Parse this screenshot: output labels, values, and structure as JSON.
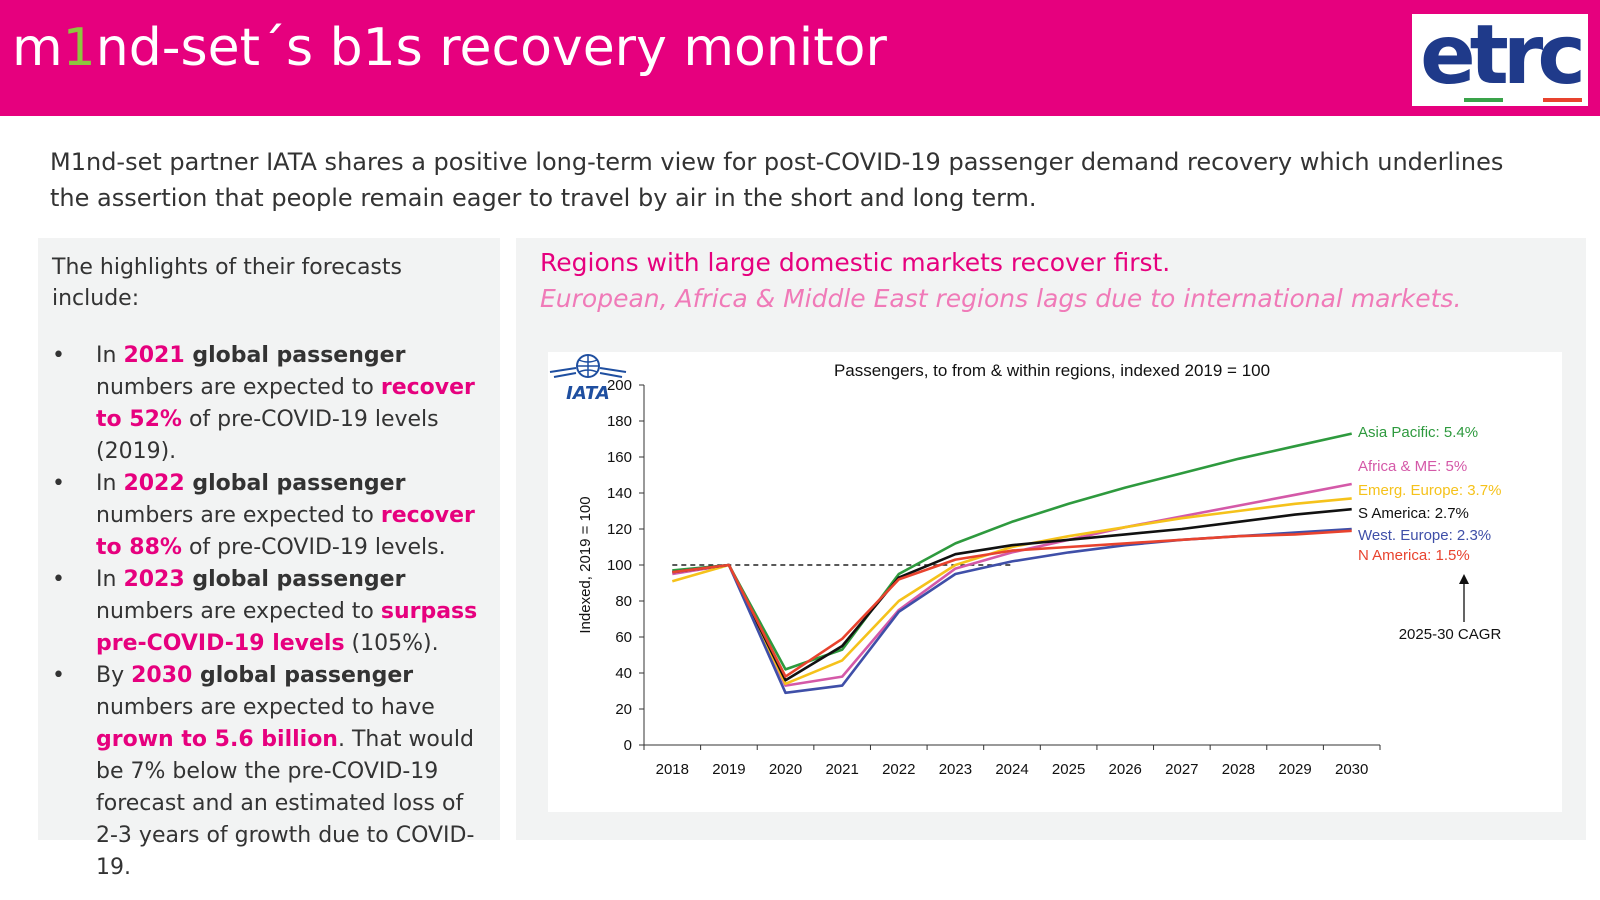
{
  "header": {
    "title_parts": [
      "m",
      "1",
      "nd-set´s b1s recovery monitor"
    ],
    "logo_text": "etrc"
  },
  "intro": "M1nd-set partner IATA shares a positive long-term view for post-COVID-19 passenger demand recovery which underlines the assertion that people remain eager to travel by air in the short and long term.",
  "left": {
    "intro": "The highlights of their forecasts include:",
    "bullets": [
      [
        {
          "t": "In ",
          "s": ""
        },
        {
          "t": "2021",
          "s": "pink"
        },
        {
          "t": " global passenger",
          "s": "b"
        },
        {
          "t": " numbers are expected to ",
          "s": ""
        },
        {
          "t": "recover to 52%",
          "s": "pink"
        },
        {
          "t": " of pre-COVID-19 levels (2019).",
          "s": ""
        }
      ],
      [
        {
          "t": "In ",
          "s": ""
        },
        {
          "t": "2022",
          "s": "pink"
        },
        {
          "t": " global passenger",
          "s": "b"
        },
        {
          "t": " numbers are expected to ",
          "s": ""
        },
        {
          "t": "recover to 88%",
          "s": "pink"
        },
        {
          "t": " of pre-COVID-19 levels.",
          "s": ""
        }
      ],
      [
        {
          "t": "In ",
          "s": ""
        },
        {
          "t": "2023",
          "s": "pink"
        },
        {
          "t": " global passenger",
          "s": "b"
        },
        {
          "t": " numbers are expected to ",
          "s": ""
        },
        {
          "t": "surpass pre-COVID-19 levels",
          "s": "pink"
        },
        {
          "t": " (105%).",
          "s": ""
        }
      ],
      [
        {
          "t": "By ",
          "s": ""
        },
        {
          "t": "2030",
          "s": "pink"
        },
        {
          "t": " global passenger",
          "s": "b"
        },
        {
          "t": " numbers are expected to have ",
          "s": ""
        },
        {
          "t": "grown to 5.6 billion",
          "s": "pink"
        },
        {
          "t": ". That would be 7% below the pre-COVID-19 forecast and an estimated loss of 2-3 years of growth due to COVID-19.",
          "s": ""
        }
      ]
    ]
  },
  "right": {
    "title": "Regions with large domestic markets recover first.",
    "subtitle": "European, Africa & Middle East regions lags due to international markets."
  },
  "chart_data": {
    "type": "line",
    "title": "Passengers, to from & within regions, indexed 2019 = 100",
    "xlabel": "",
    "ylabel": "Indexed, 2019 = 100",
    "x": [
      "2018",
      "2019",
      "2020",
      "2021",
      "2022",
      "2023",
      "2024",
      "2025",
      "2026",
      "2027",
      "2028",
      "2029",
      "2030"
    ],
    "ylim": [
      0,
      200
    ],
    "yticks": [
      0,
      20,
      40,
      60,
      80,
      100,
      120,
      140,
      160,
      180,
      200
    ],
    "reference_line": {
      "y": 100,
      "x_from": "2018",
      "x_to": "2024",
      "style": "dashed"
    },
    "annotation": "2025-30 CAGR",
    "series": [
      {
        "name": "Asia Pacific: 5.4%",
        "color": "#2e9a3e",
        "values": [
          97,
          100,
          42,
          53,
          95,
          112,
          124,
          134,
          143,
          151,
          159,
          166,
          173
        ]
      },
      {
        "name": "Africa & ME: 5%",
        "color": "#d459a8",
        "values": [
          95,
          100,
          33,
          38,
          75,
          98,
          107,
          114,
          121,
          127,
          133,
          139,
          145
        ]
      },
      {
        "name": "Emerg. Europe: 3.7%",
        "color": "#f5c21b",
        "values": [
          91,
          100,
          34,
          47,
          80,
          100,
          110,
          116,
          121,
          126,
          130,
          134,
          137
        ]
      },
      {
        "name": "S America: 2.7%",
        "color": "#111111",
        "values": [
          96,
          100,
          36,
          55,
          93,
          106,
          111,
          114,
          117,
          120,
          124,
          128,
          131
        ]
      },
      {
        "name": "West. Europe: 2.3%",
        "color": "#3f4fa8",
        "values": [
          96,
          100,
          29,
          33,
          74,
          95,
          102,
          107,
          111,
          114,
          116,
          118,
          120
        ]
      },
      {
        "name": "N America: 1.5%",
        "color": "#e8432e",
        "values": [
          96,
          100,
          38,
          59,
          92,
          103,
          108,
          110,
          112,
          114,
          116,
          117,
          119
        ]
      }
    ]
  },
  "iata_label": "IATA"
}
